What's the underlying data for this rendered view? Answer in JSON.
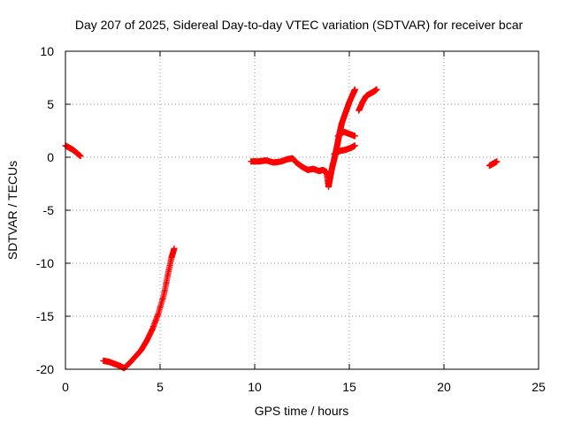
{
  "chart_data": {
    "type": "scatter",
    "title": "Day 207 of 2025, Sidereal Day-to-day VTEC variation (SDTVAR) for receiver bcar",
    "xlabel": "GPS time / hours",
    "ylabel": "SDTVAR / TECUs",
    "xlim": [
      0,
      25
    ],
    "ylim": [
      -20,
      10
    ],
    "xticks": [
      0,
      5,
      10,
      15,
      20,
      25
    ],
    "yticks": [
      -20,
      -15,
      -10,
      -5,
      0,
      5,
      10
    ],
    "grid": true,
    "marker": "+",
    "series": [
      {
        "name": "SDTVAR",
        "color": "#ff0000",
        "segments": [
          [
            [
              0.0,
              1.1
            ],
            [
              0.2,
              0.9
            ],
            [
              0.4,
              0.7
            ],
            [
              0.6,
              0.4
            ],
            [
              0.8,
              0.1
            ]
          ],
          [
            [
              2.0,
              -19.2
            ],
            [
              2.3,
              -19.3
            ],
            [
              2.6,
              -19.5
            ],
            [
              2.9,
              -19.7
            ],
            [
              3.1,
              -19.9
            ],
            [
              3.4,
              -19.4
            ],
            [
              3.7,
              -18.8
            ],
            [
              4.0,
              -18.2
            ],
            [
              4.3,
              -17.3
            ],
            [
              4.6,
              -16.2
            ],
            [
              4.9,
              -14.8
            ],
            [
              5.2,
              -13.0
            ],
            [
              5.4,
              -11.2
            ],
            [
              5.6,
              -9.5
            ],
            [
              5.75,
              -8.6
            ]
          ],
          [
            [
              9.8,
              -0.4
            ],
            [
              10.2,
              -0.4
            ],
            [
              10.6,
              -0.3
            ],
            [
              11.0,
              -0.5
            ],
            [
              11.4,
              -0.4
            ],
            [
              11.7,
              -0.2
            ],
            [
              12.0,
              -0.1
            ],
            [
              12.2,
              -0.5
            ],
            [
              12.5,
              -0.9
            ],
            [
              12.8,
              -1.2
            ],
            [
              13.1,
              -1.1
            ],
            [
              13.4,
              -1.3
            ],
            [
              13.6,
              -1.2
            ],
            [
              13.8,
              -1.4
            ],
            [
              13.9,
              -2.8
            ],
            [
              14.0,
              -1.8
            ],
            [
              14.1,
              -0.9
            ],
            [
              14.2,
              -0.2
            ],
            [
              14.3,
              0.6
            ],
            [
              14.4,
              1.5
            ],
            [
              14.5,
              2.4
            ],
            [
              14.6,
              3.2
            ],
            [
              14.8,
              4.2
            ],
            [
              15.0,
              5.2
            ],
            [
              15.2,
              6.0
            ],
            [
              15.3,
              6.4
            ]
          ],
          [
            [
              14.2,
              0.3
            ],
            [
              14.5,
              0.6
            ],
            [
              14.8,
              0.7
            ],
            [
              15.1,
              0.9
            ],
            [
              15.3,
              1.1
            ]
          ],
          [
            [
              14.4,
              2.0
            ],
            [
              14.7,
              2.4
            ],
            [
              15.0,
              2.2
            ],
            [
              15.3,
              2.0
            ]
          ],
          [
            [
              15.5,
              4.4
            ],
            [
              15.7,
              5.2
            ],
            [
              15.9,
              5.8
            ],
            [
              16.1,
              6.0
            ],
            [
              16.3,
              6.2
            ],
            [
              16.45,
              6.4
            ]
          ],
          [
            [
              22.4,
              -0.8
            ],
            [
              22.6,
              -0.6
            ],
            [
              22.8,
              -0.4
            ]
          ]
        ]
      }
    ]
  }
}
